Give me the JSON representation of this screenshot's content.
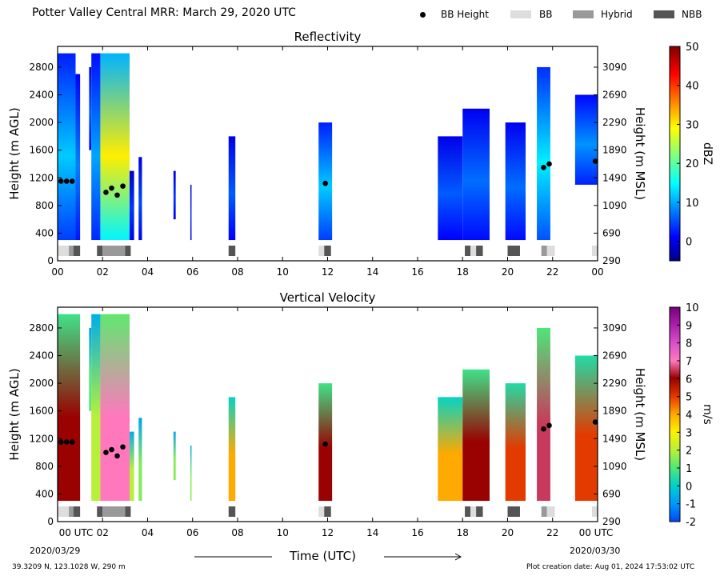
{
  "header": {
    "title": "Potter Valley Central MRR:  March 29, 2020 UTC",
    "legend": [
      {
        "label": "BB Height",
        "kind": "dot",
        "color": "#000000"
      },
      {
        "label": "BB",
        "kind": "box",
        "color": "#dddddd"
      },
      {
        "label": "Hybrid",
        "kind": "box",
        "color": "#999999"
      },
      {
        "label": "NBB",
        "kind": "box",
        "color": "#555555"
      }
    ]
  },
  "footer": {
    "location": "39.3209 N, 123.1028 W, 290 m",
    "creation": "Plot creation date: Aug 01, 2024 17:53:02 UTC",
    "time_axis_label": "Time (UTC)",
    "start_date": "2020/03/29",
    "end_date": "2020/03/30"
  },
  "chart_data": [
    {
      "type": "heatmap",
      "title": "Reflectivity",
      "ylabel": "Height (m AGL)",
      "y2label": "Height (m MSL)",
      "colorbar_label": "dBZ",
      "colorbar_ticks": [
        "50",
        "40",
        "30",
        "20",
        "10",
        "0"
      ],
      "colorbar_range": [
        -5,
        50
      ],
      "colorscale": "jet",
      "x_ticks": [
        "00",
        "02",
        "04",
        "06",
        "08",
        "10",
        "12",
        "14",
        "16",
        "18",
        "20",
        "22",
        "00"
      ],
      "y_ticks": [
        "0",
        "400",
        "800",
        "1200",
        "1600",
        "2000",
        "2400",
        "2800"
      ],
      "y2_ticks": [
        "290",
        "690",
        "1090",
        "1490",
        "1890",
        "2290",
        "2690",
        "3090"
      ],
      "xlim_hours": [
        0,
        24
      ],
      "ylim_m_agl": [
        0,
        3100
      ],
      "grid": false,
      "echoes": [
        {
          "t0": 0.0,
          "t1": 0.8,
          "top": 3000,
          "bottom": 300,
          "peak_value": 12
        },
        {
          "t0": 0.8,
          "t1": 1.0,
          "top": 2700,
          "bottom": 300,
          "peak_value": 8
        },
        {
          "t0": 1.4,
          "t1": 1.5,
          "top": 2800,
          "bottom": 1600,
          "peak_value": 6
        },
        {
          "t0": 1.5,
          "t1": 1.9,
          "top": 3000,
          "bottom": 300,
          "peak_value": 10
        },
        {
          "t0": 1.9,
          "t1": 3.2,
          "top": 3000,
          "bottom": 300,
          "peak_value": 30
        },
        {
          "t0": 3.2,
          "t1": 3.4,
          "top": 1300,
          "bottom": 300,
          "peak_value": 4
        },
        {
          "t0": 3.6,
          "t1": 3.75,
          "top": 1500,
          "bottom": 300,
          "peak_value": 5
        },
        {
          "t0": 5.15,
          "t1": 5.25,
          "top": 1300,
          "bottom": 600,
          "peak_value": 4
        },
        {
          "t0": 5.9,
          "t1": 5.95,
          "top": 1100,
          "bottom": 300,
          "peak_value": 3
        },
        {
          "t0": 7.6,
          "t1": 7.9,
          "top": 1800,
          "bottom": 300,
          "peak_value": 6
        },
        {
          "t0": 11.6,
          "t1": 12.2,
          "top": 2000,
          "bottom": 300,
          "peak_value": 12
        },
        {
          "t0": 16.9,
          "t1": 18.0,
          "top": 1800,
          "bottom": 300,
          "peak_value": 6
        },
        {
          "t0": 18.0,
          "t1": 19.2,
          "top": 2200,
          "bottom": 300,
          "peak_value": 7
        },
        {
          "t0": 19.9,
          "t1": 20.8,
          "top": 2000,
          "bottom": 300,
          "peak_value": 7
        },
        {
          "t0": 21.3,
          "t1": 21.9,
          "top": 2800,
          "bottom": 300,
          "peak_value": 14
        },
        {
          "t0": 23.0,
          "t1": 24.0,
          "top": 2400,
          "bottom": 1100,
          "peak_value": 9
        }
      ],
      "bb_height_points": [
        {
          "t": 0.15,
          "h": 1150
        },
        {
          "t": 0.4,
          "h": 1150
        },
        {
          "t": 0.65,
          "h": 1150
        },
        {
          "t": 2.15,
          "h": 990
        },
        {
          "t": 2.4,
          "h": 1050
        },
        {
          "t": 2.65,
          "h": 950
        },
        {
          "t": 2.9,
          "h": 1080
        },
        {
          "t": 11.9,
          "h": 1120
        },
        {
          "t": 21.6,
          "h": 1350
        },
        {
          "t": 21.85,
          "h": 1400
        },
        {
          "t": 23.9,
          "h": 1440
        }
      ],
      "bb_type_segments": [
        {
          "t0": 0.0,
          "t1": 0.5,
          "kind": "BB"
        },
        {
          "t0": 0.5,
          "t1": 0.7,
          "kind": "Hybrid"
        },
        {
          "t0": 0.7,
          "t1": 1.0,
          "kind": "NBB"
        },
        {
          "t0": 1.75,
          "t1": 2.0,
          "kind": "NBB"
        },
        {
          "t0": 2.0,
          "t1": 3.0,
          "kind": "Hybrid"
        },
        {
          "t0": 3.0,
          "t1": 3.25,
          "kind": "NBB"
        },
        {
          "t0": 7.6,
          "t1": 7.9,
          "kind": "NBB"
        },
        {
          "t0": 11.6,
          "t1": 11.85,
          "kind": "BB"
        },
        {
          "t0": 11.85,
          "t1": 12.15,
          "kind": "NBB"
        },
        {
          "t0": 18.1,
          "t1": 18.35,
          "kind": "NBB"
        },
        {
          "t0": 18.35,
          "t1": 18.6,
          "kind": "BB"
        },
        {
          "t0": 18.6,
          "t1": 18.9,
          "kind": "NBB"
        },
        {
          "t0": 20.0,
          "t1": 20.55,
          "kind": "NBB"
        },
        {
          "t0": 21.5,
          "t1": 21.75,
          "kind": "Hybrid"
        },
        {
          "t0": 21.75,
          "t1": 22.1,
          "kind": "BB"
        },
        {
          "t0": 23.75,
          "t1": 24.0,
          "kind": "BB"
        }
      ]
    },
    {
      "type": "heatmap",
      "title": "Vertical Velocity",
      "ylabel": "Height (m AGL)",
      "y2label": "Height (m MSL)",
      "colorbar_label": "m/s",
      "colorbar_ticks": [
        "10",
        "9",
        "8",
        "7",
        "6",
        "5",
        "4",
        "3",
        "2",
        "1",
        "0",
        "-1",
        "-2"
      ],
      "colorbar_range": [
        -2,
        10
      ],
      "colorscale": "velocity",
      "x_ticks": [
        "00 UTC",
        "02",
        "04",
        "06",
        "08",
        "10",
        "12",
        "14",
        "16",
        "18",
        "20",
        "22",
        "00 UTC"
      ],
      "y_ticks": [
        "0",
        "400",
        "800",
        "1200",
        "1600",
        "2000",
        "2400",
        "2800"
      ],
      "y2_ticks": [
        "290",
        "690",
        "1090",
        "1490",
        "1890",
        "2290",
        "2690",
        "3090"
      ],
      "xlim_hours": [
        0,
        24
      ],
      "ylim_m_agl": [
        0,
        3100
      ],
      "grid": false,
      "echoes": [
        {
          "t0": 0.0,
          "t1": 1.0,
          "top": 3000,
          "bottom": 300,
          "peak_value": 6
        },
        {
          "t0": 1.4,
          "t1": 1.5,
          "top": 2800,
          "bottom": 1600,
          "peak_value": 1
        },
        {
          "t0": 1.5,
          "t1": 1.9,
          "top": 3000,
          "bottom": 300,
          "peak_value": 2
        },
        {
          "t0": 1.9,
          "t1": 3.2,
          "top": 3000,
          "bottom": 300,
          "peak_value": 7
        },
        {
          "t0": 3.2,
          "t1": 3.4,
          "top": 1300,
          "bottom": 300,
          "peak_value": 2
        },
        {
          "t0": 3.6,
          "t1": 3.75,
          "top": 1500,
          "bottom": 300,
          "peak_value": 1.5
        },
        {
          "t0": 5.15,
          "t1": 5.25,
          "top": 1300,
          "bottom": 600,
          "peak_value": 1.5
        },
        {
          "t0": 5.9,
          "t1": 5.95,
          "top": 1100,
          "bottom": 300,
          "peak_value": 1.5
        },
        {
          "t0": 7.6,
          "t1": 7.9,
          "top": 1800,
          "bottom": 300,
          "peak_value": 4
        },
        {
          "t0": 11.6,
          "t1": 12.2,
          "top": 2000,
          "bottom": 300,
          "peak_value": 6
        },
        {
          "t0": 16.9,
          "t1": 18.0,
          "top": 1800,
          "bottom": 300,
          "peak_value": 4
        },
        {
          "t0": 18.0,
          "t1": 19.2,
          "top": 2200,
          "bottom": 300,
          "peak_value": 6
        },
        {
          "t0": 19.9,
          "t1": 20.8,
          "top": 2000,
          "bottom": 300,
          "peak_value": 5
        },
        {
          "t0": 21.3,
          "t1": 21.9,
          "top": 2800,
          "bottom": 300,
          "peak_value": 6.5
        },
        {
          "t0": 23.0,
          "t1": 24.0,
          "top": 2400,
          "bottom": 300,
          "peak_value": 5
        }
      ],
      "bb_height_points": [
        {
          "t": 0.15,
          "h": 1150
        },
        {
          "t": 0.4,
          "h": 1150
        },
        {
          "t": 0.65,
          "h": 1150
        },
        {
          "t": 2.15,
          "h": 1000
        },
        {
          "t": 2.4,
          "h": 1040
        },
        {
          "t": 2.65,
          "h": 950
        },
        {
          "t": 2.9,
          "h": 1080
        },
        {
          "t": 11.9,
          "h": 1120
        },
        {
          "t": 21.6,
          "h": 1340
        },
        {
          "t": 21.85,
          "h": 1390
        },
        {
          "t": 23.9,
          "h": 1440
        }
      ],
      "bb_type_segments": [
        {
          "t0": 0.0,
          "t1": 0.5,
          "kind": "BB"
        },
        {
          "t0": 0.5,
          "t1": 0.7,
          "kind": "Hybrid"
        },
        {
          "t0": 0.7,
          "t1": 1.0,
          "kind": "NBB"
        },
        {
          "t0": 1.75,
          "t1": 2.0,
          "kind": "NBB"
        },
        {
          "t0": 2.0,
          "t1": 3.0,
          "kind": "Hybrid"
        },
        {
          "t0": 3.0,
          "t1": 3.25,
          "kind": "NBB"
        },
        {
          "t0": 7.6,
          "t1": 7.9,
          "kind": "NBB"
        },
        {
          "t0": 11.6,
          "t1": 11.85,
          "kind": "BB"
        },
        {
          "t0": 11.85,
          "t1": 12.15,
          "kind": "NBB"
        },
        {
          "t0": 18.1,
          "t1": 18.35,
          "kind": "NBB"
        },
        {
          "t0": 18.35,
          "t1": 18.6,
          "kind": "BB"
        },
        {
          "t0": 18.6,
          "t1": 18.9,
          "kind": "NBB"
        },
        {
          "t0": 20.0,
          "t1": 20.55,
          "kind": "NBB"
        },
        {
          "t0": 21.5,
          "t1": 21.75,
          "kind": "Hybrid"
        },
        {
          "t0": 21.75,
          "t1": 22.1,
          "kind": "BB"
        },
        {
          "t0": 23.75,
          "t1": 24.0,
          "kind": "BB"
        }
      ]
    }
  ]
}
